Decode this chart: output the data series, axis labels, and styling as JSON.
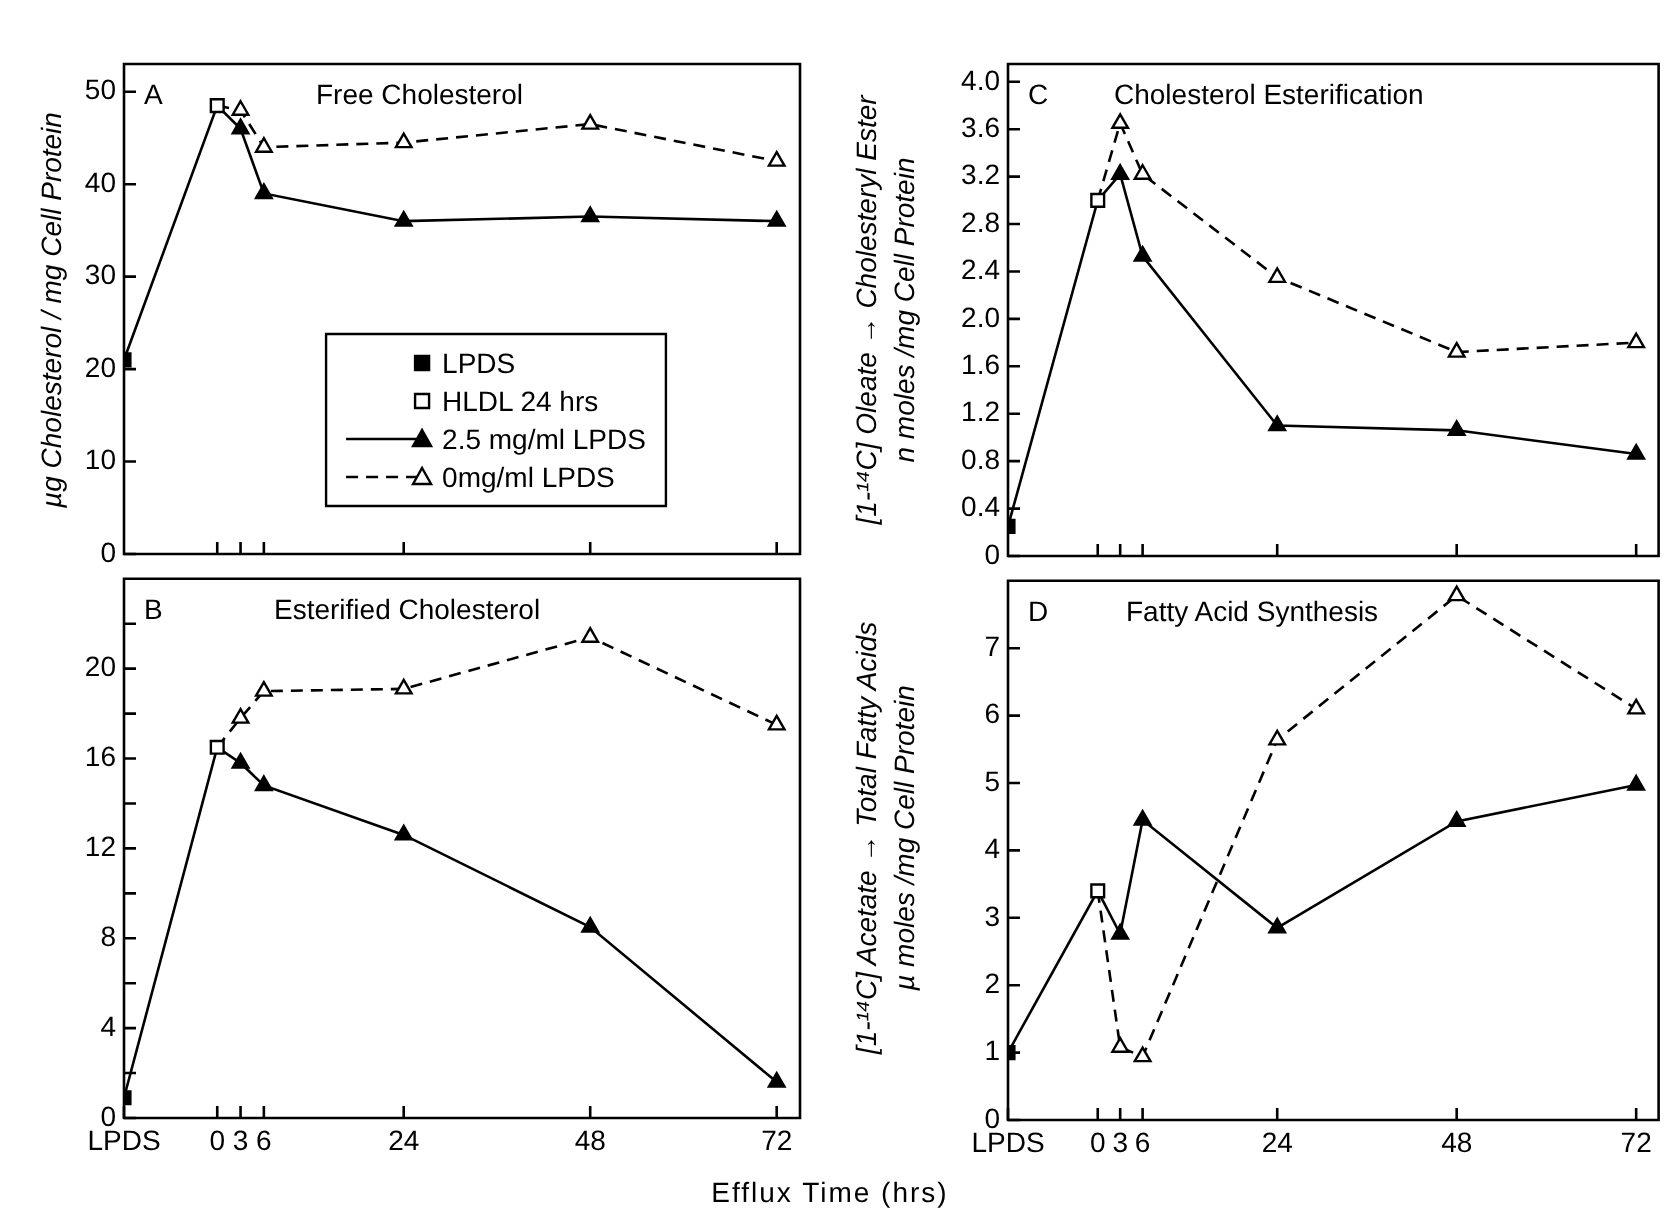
{
  "chart_data": [
    {
      "type": "line",
      "title": "Free Cholesterol",
      "annotations": [
        "A"
      ],
      "ylabel": "µg Cholesterol / mg Cell Protein",
      "xlim": [
        -12,
        75
      ],
      "xticks": [
        0,
        3,
        6,
        24,
        48,
        72
      ],
      "ylim": [
        0,
        53
      ],
      "yticks": [
        0,
        10,
        20,
        30,
        40,
        50
      ],
      "tick_labels": "y",
      "legend": "bottom",
      "series": [
        {
          "name": "LPDS",
          "type": "scatter",
          "marker": "square",
          "color": "#000000",
          "x": [
            -12
          ],
          "values": [
            21
          ]
        },
        {
          "name": "HLDL 24 hrs",
          "type": "scatter",
          "marker": "square",
          "color": "#000000",
          "colors": [
            "#ffffff"
          ],
          "x": [
            0
          ],
          "values": [
            48.5
          ]
        },
        {
          "name": "2.5 mg/ml LPDS",
          "type": "line",
          "marker": "triangle",
          "line_style": "solid",
          "color": "#000000",
          "x": [
            -12,
            0,
            3,
            6,
            24,
            48,
            72
          ],
          "values": [
            21,
            48.5,
            46,
            39,
            36,
            36.5,
            36
          ]
        },
        {
          "name": "0mg/ml LPDS",
          "type": "line",
          "marker": "triangle",
          "line_style": "dashed",
          "color": "#000000",
          "colors": [
            "#ffffff",
            "#ffffff",
            "#ffffff",
            "#ffffff",
            "#ffffff",
            "#ffffff"
          ],
          "x": [
            0,
            3,
            6,
            24,
            48,
            72
          ],
          "values": [
            48.5,
            48,
            44,
            44.5,
            46.5,
            42.5
          ]
        }
      ]
    },
    {
      "type": "line",
      "title": "Cholesterol Esterification",
      "annotations": [
        "C"
      ],
      "ylabel": "[1-¹⁴C] Oleate → Cholesteryl Ester\nn moles /mg Cell Protein",
      "xlim": [
        -12,
        75
      ],
      "xticks": [
        0,
        3,
        6,
        24,
        48,
        72
      ],
      "ylim": [
        0,
        4.15
      ],
      "yticks": [
        0,
        0.4,
        0.8,
        1.2,
        1.6,
        {
          "value": 2,
          "label": "2.0"
        },
        2.4,
        2.8,
        3.2,
        3.6,
        {
          "value": 4,
          "label": "4.0"
        }
      ],
      "tick_labels": "y",
      "series": [
        {
          "type": "scatter",
          "marker": "square",
          "color": "#000000",
          "x": [
            -12
          ],
          "values": [
            0.25
          ]
        },
        {
          "type": "scatter",
          "marker": "square",
          "color": "#000000",
          "colors": [
            "#ffffff"
          ],
          "x": [
            0
          ],
          "values": [
            3.0
          ]
        },
        {
          "type": "line",
          "marker": "triangle",
          "line_style": "solid",
          "color": "#000000",
          "x": [
            -12,
            0,
            3,
            6,
            24,
            48,
            72
          ],
          "values": [
            0.25,
            3.0,
            3.22,
            2.53,
            1.1,
            1.06,
            0.86
          ]
        },
        {
          "type": "line",
          "marker": "triangle",
          "line_style": "dashed",
          "color": "#000000",
          "colors": [
            "#ffffff",
            "#ffffff",
            "#ffffff",
            "#ffffff",
            "#ffffff",
            "#ffffff"
          ],
          "x": [
            0,
            3,
            6,
            24,
            48,
            72
          ],
          "values": [
            3.0,
            3.65,
            3.22,
            2.35,
            1.72,
            1.8
          ]
        }
      ]
    },
    {
      "type": "line",
      "title": "Esterified Cholesterol",
      "annotations": [
        "B"
      ],
      "xlabel": "Efflux Time (hrs)",
      "xlim": [
        -12,
        75
      ],
      "xticks": [
        {
          "value": -12,
          "label": "LPDS"
        },
        0,
        3,
        6,
        24,
        48,
        72
      ],
      "ylim": [
        0,
        24
      ],
      "yticks": [
        0,
        {
          "value": 2,
          "label": null
        },
        4,
        {
          "value": 6,
          "label": null
        },
        8,
        {
          "value": 10,
          "label": null
        },
        12,
        {
          "value": 14,
          "label": null
        },
        16,
        {
          "value": 18,
          "label": null
        },
        20,
        {
          "value": 22,
          "label": null
        }
      ],
      "series": [
        {
          "type": "scatter",
          "marker": "square",
          "color": "#000000",
          "x": [
            -12
          ],
          "values": [
            0.9
          ]
        },
        {
          "type": "scatter",
          "marker": "square",
          "color": "#000000",
          "colors": [
            "#ffffff"
          ],
          "x": [
            0
          ],
          "values": [
            16.5
          ]
        },
        {
          "type": "line",
          "marker": "triangle",
          "line_style": "solid",
          "color": "#000000",
          "x": [
            -12,
            0,
            3,
            6,
            24,
            48,
            72
          ],
          "values": [
            0.9,
            16.5,
            15.8,
            14.8,
            12.6,
            8.5,
            1.6
          ]
        },
        {
          "type": "line",
          "marker": "triangle",
          "line_style": "dashed",
          "color": "#000000",
          "colors": [
            "#ffffff",
            "#ffffff",
            "#ffffff",
            "#ffffff",
            "#ffffff",
            "#ffffff"
          ],
          "x": [
            0,
            3,
            6,
            24,
            48,
            72
          ],
          "values": [
            16.5,
            17.8,
            19.0,
            19.1,
            21.4,
            17.5
          ]
        }
      ]
    },
    {
      "type": "line",
      "title": "Fatty Acid Synthesis",
      "annotations": [
        "D"
      ],
      "ylabel": "[1-¹⁴C] Acetate → Total Fatty Acids\nµ moles /mg Cell Protein",
      "xlim": [
        -12,
        75
      ],
      "xticks": [
        {
          "value": -12,
          "label": "LPDS"
        },
        0,
        3,
        6,
        24,
        48,
        72
      ],
      "ylim": [
        0,
        8
      ],
      "yticks": [
        0,
        1,
        2,
        3,
        4,
        5,
        6,
        7
      ],
      "series": [
        {
          "type": "scatter",
          "marker": "square",
          "color": "#000000",
          "x": [
            -12
          ],
          "values": [
            1.0
          ]
        },
        {
          "type": "scatter",
          "marker": "square",
          "color": "#000000",
          "colors": [
            "#ffffff"
          ],
          "x": [
            0
          ],
          "values": [
            3.4
          ]
        },
        {
          "type": "line",
          "marker": "triangle",
          "line_style": "solid",
          "color": "#000000",
          "x": [
            -12,
            0,
            3,
            6,
            24,
            48,
            72
          ],
          "values": [
            1.0,
            3.4,
            2.76,
            4.45,
            2.85,
            4.43,
            4.97
          ]
        },
        {
          "type": "line",
          "marker": "triangle",
          "line_style": "dashed",
          "color": "#000000",
          "colors": [
            "#ffffff",
            "#ffffff",
            "#ffffff",
            "#ffffff",
            "#ffffff",
            "#ffffff"
          ],
          "x": [
            0,
            3,
            6,
            24,
            48,
            72
          ],
          "values": [
            3.4,
            1.08,
            0.94,
            5.64,
            7.78,
            6.1
          ]
        }
      ]
    }
  ]
}
